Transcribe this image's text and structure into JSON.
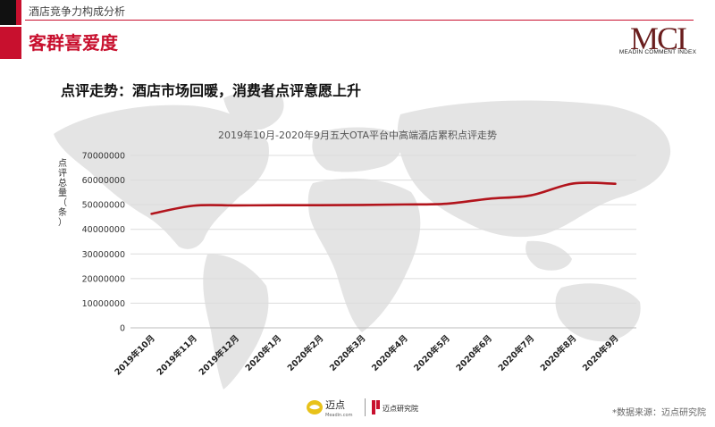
{
  "header": {
    "section": "酒店竞争力构成分析",
    "title": "客群喜爱度"
  },
  "brand": {
    "logo_text": "MCI",
    "logo_subtitle": "MEADIN COMMENT INDEX",
    "accent_color": "#c8102e"
  },
  "subheading": "点评走势：酒店市场回暖，消费者点评意愿上升",
  "chart_data": {
    "type": "line",
    "title": "2019年10月-2020年9月五大OTA平台中高端酒店累积点评走势",
    "ylabel": "点评总量（条）",
    "xlabel": "",
    "ylim": [
      0,
      70000000
    ],
    "yticks": [
      0,
      10000000,
      20000000,
      30000000,
      40000000,
      50000000,
      60000000,
      70000000
    ],
    "categories": [
      "2019年10月",
      "2019年11月",
      "2019年12月",
      "2020年1月",
      "2020年2月",
      "2020年3月",
      "2020年4月",
      "2020年5月",
      "2020年6月",
      "2020年7月",
      "2020年8月",
      "2020年9月"
    ],
    "series": [
      {
        "values": [
          46300000,
          49600000,
          49700000,
          49800000,
          49800000,
          49900000,
          50100000,
          50400000,
          52400000,
          53800000,
          58600000,
          58500000
        ],
        "color": "#b2141c"
      }
    ],
    "grid": true,
    "legend": "none"
  },
  "footer": {
    "logo1_main": "迈点",
    "logo1_small": "Meadin.com",
    "logo2_text": "迈点研究院",
    "source": "*数据来源：迈点研究院"
  }
}
